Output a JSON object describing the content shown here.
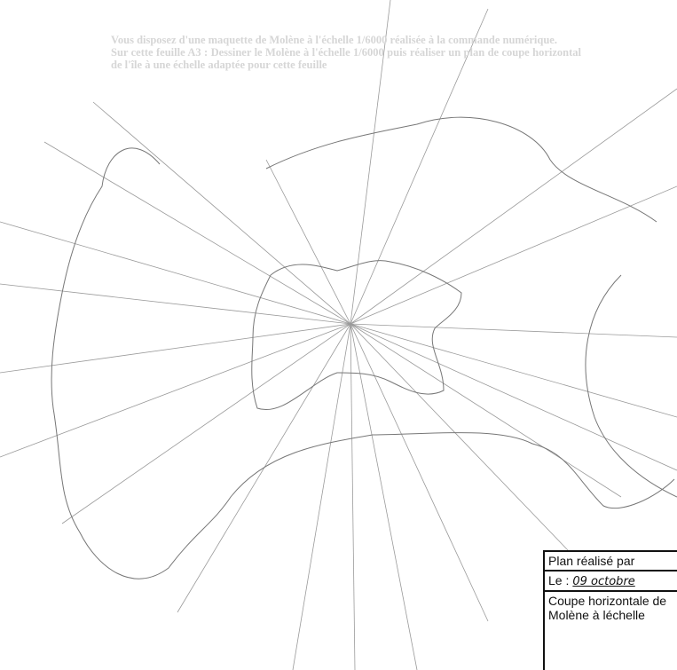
{
  "instructions": [
    "Vous disposez d'une maquette de Molène à l'échelle 1/6000 réalisée à la commande numérique.",
    "Sur cette feuille A3 : Dessiner le Molène à l'échelle 1/6000 puis réaliser un plan de coupe horizontal de l'île à une échelle adaptée pour cette feuille"
  ],
  "title_block": {
    "made_by_label": "Plan réalisé par",
    "date_label": "Le :",
    "date_value": "09 octobre",
    "caption_lines": [
      "Coupe horizontale de",
      "Molène à léchelle"
    ]
  }
}
